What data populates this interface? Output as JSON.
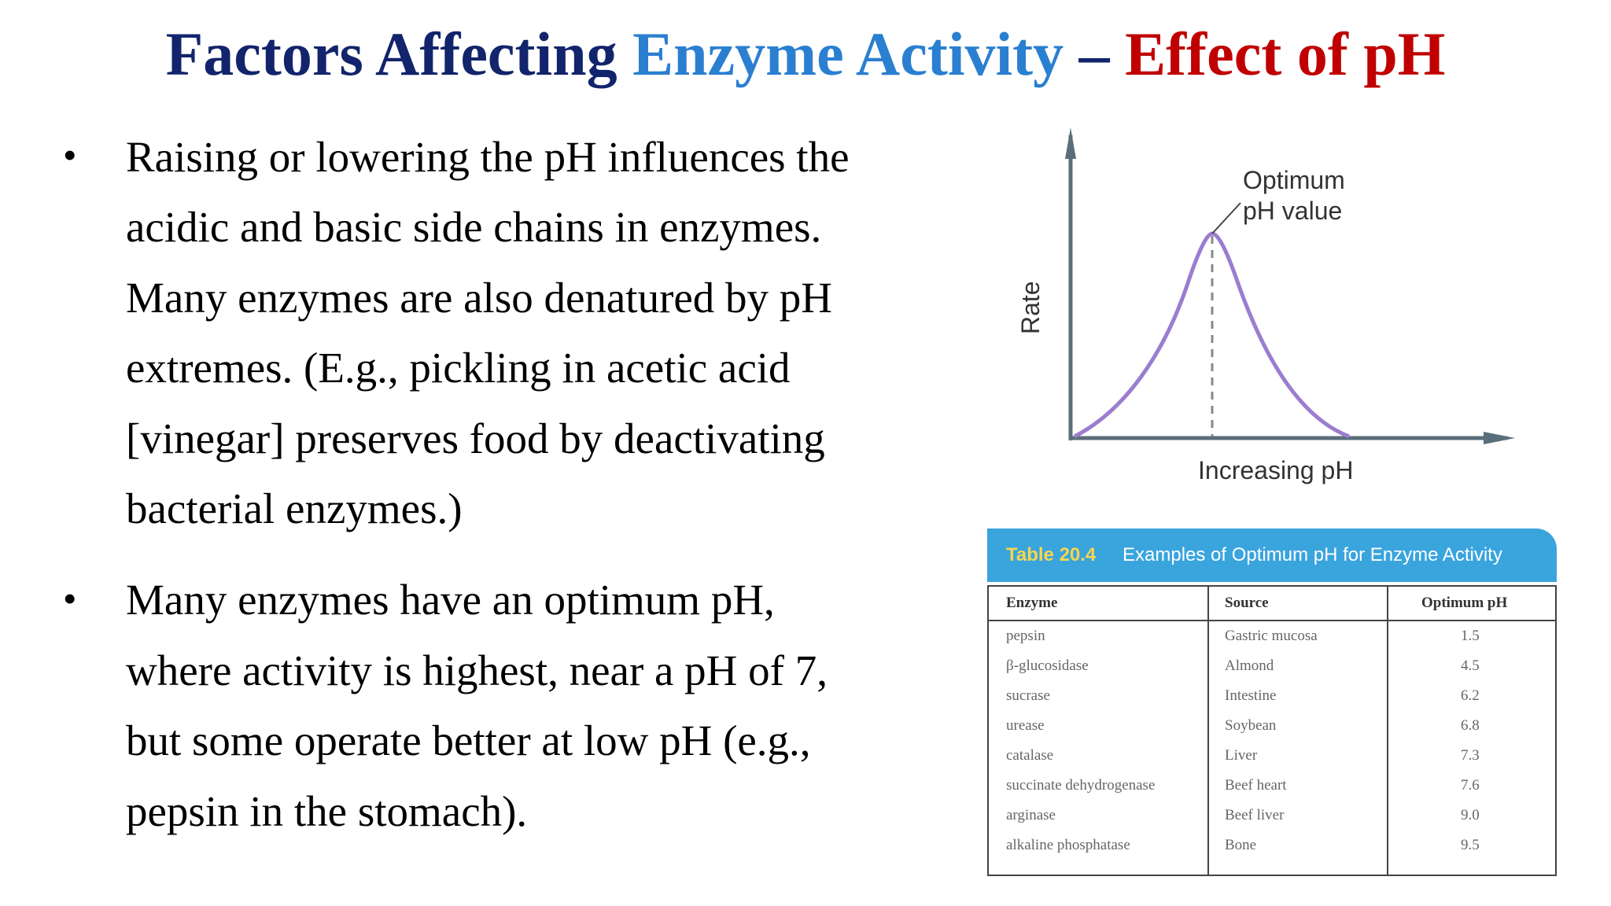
{
  "title": {
    "part1": "Factors Affecting ",
    "part2": "Enzyme Activity",
    "part3": " – ",
    "part4": "Effect of pH"
  },
  "bullets": [
    {
      "lines": [
        "Raising or lowering the pH influences the",
        "acidic and basic side chains in enzymes.",
        "Many enzymes are also denatured by pH",
        "extremes. (E.g., pickling in acetic acid",
        "[vinegar] preserves food by deactivating",
        "bacterial enzymes.)"
      ]
    },
    {
      "lines": [
        "Many enzymes have an optimum pH,",
        "where activity is highest, near a pH of 7,",
        "but some operate better at low pH (e.g.,",
        "pepsin in the stomach)."
      ]
    }
  ],
  "graph": {
    "y_label": "Rate",
    "x_label": "Increasing pH",
    "peak_label_line1": "Optimum",
    "peak_label_line2": "pH value",
    "curve_color": "#9b7dd0",
    "axis_color": "#5a6e7a"
  },
  "table": {
    "number": "Table 20.4",
    "caption": "Examples of Optimum pH for Enzyme Activity",
    "headers": [
      "Enzyme",
      "Source",
      "Optimum pH"
    ],
    "rows": [
      [
        "pepsin",
        "Gastric mucosa",
        "1.5"
      ],
      [
        "β-glucosidase",
        "Almond",
        "4.5"
      ],
      [
        "sucrase",
        "Intestine",
        "6.2"
      ],
      [
        "urease",
        "Soybean",
        "6.8"
      ],
      [
        "catalase",
        "Liver",
        "7.3"
      ],
      [
        "succinate dehydrogenase",
        "Beef heart",
        "7.6"
      ],
      [
        "arginase",
        "Beef liver",
        "9.0"
      ],
      [
        "alkaline phosphatase",
        "Bone",
        "9.5"
      ]
    ]
  }
}
